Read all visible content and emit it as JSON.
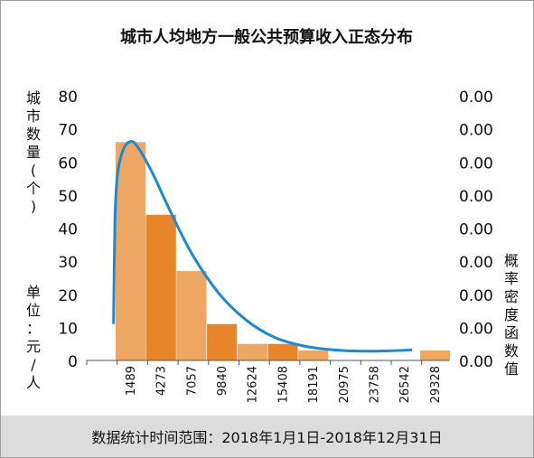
{
  "chart_data": {
    "type": "bar",
    "title": "城市人均地方一般公共预算收入正态分布",
    "categories": [
      "1489",
      "4273",
      "7057",
      "9840",
      "12624",
      "15408",
      "18191",
      "20975",
      "23758",
      "26542",
      "29328"
    ],
    "bins": [
      {
        "from": "1489",
        "to": "4273",
        "value": 66
      },
      {
        "from": "4273",
        "to": "7057",
        "value": 44
      },
      {
        "from": "7057",
        "to": "9840",
        "value": 27
      },
      {
        "from": "9840",
        "to": "12624",
        "value": 11
      },
      {
        "from": "12624",
        "to": "15408",
        "value": 5
      },
      {
        "from": "15408",
        "to": "18191",
        "value": 5
      },
      {
        "from": "18191",
        "to": "20975",
        "value": 3
      },
      {
        "from": "20975",
        "to": "23758",
        "value": 0
      },
      {
        "from": "23758",
        "to": "26542",
        "value": 0
      },
      {
        "from": "26542",
        "to": "29328",
        "value": 0
      },
      {
        "from": "29328",
        "to": "",
        "value": 3
      }
    ],
    "curve": {
      "type": "density",
      "color": "#1a8ad4",
      "points_left_axis_units": [
        [
          1300,
          11
        ],
        [
          1420,
          42
        ],
        [
          1650,
          56
        ],
        [
          2100,
          63
        ],
        [
          2700,
          66
        ],
        [
          3400,
          65
        ],
        [
          4800,
          57
        ],
        [
          6500,
          45
        ],
        [
          8500,
          32
        ],
        [
          11000,
          20
        ],
        [
          13500,
          12
        ],
        [
          16000,
          7
        ],
        [
          18500,
          4.5
        ],
        [
          21000,
          3.3
        ],
        [
          24000,
          2.8
        ],
        [
          26500,
          2.9
        ],
        [
          28600,
          3.2
        ]
      ]
    },
    "y_left": {
      "label": "城市数量(个)",
      "ticks": [
        "0",
        "10",
        "20",
        "30",
        "40",
        "50",
        "60",
        "70",
        "80"
      ],
      "ylim": [
        0,
        80
      ]
    },
    "y_right": {
      "label": "概率密度函数值",
      "ticks": [
        "0.00",
        "0.00",
        "0.00",
        "0.00",
        "0.00",
        "0.00",
        "0.00",
        "0.00",
        "0.00"
      ]
    },
    "unit_label": "单位：元/人",
    "colors": {
      "light_bar": "#eea762",
      "dark_bar": "#e8852a",
      "curve": "#1a8ad4"
    },
    "grid": false,
    "legend": "none"
  },
  "footer": {
    "text": "数据统计时间范围：2018年1月1日-2018年12月31日"
  }
}
